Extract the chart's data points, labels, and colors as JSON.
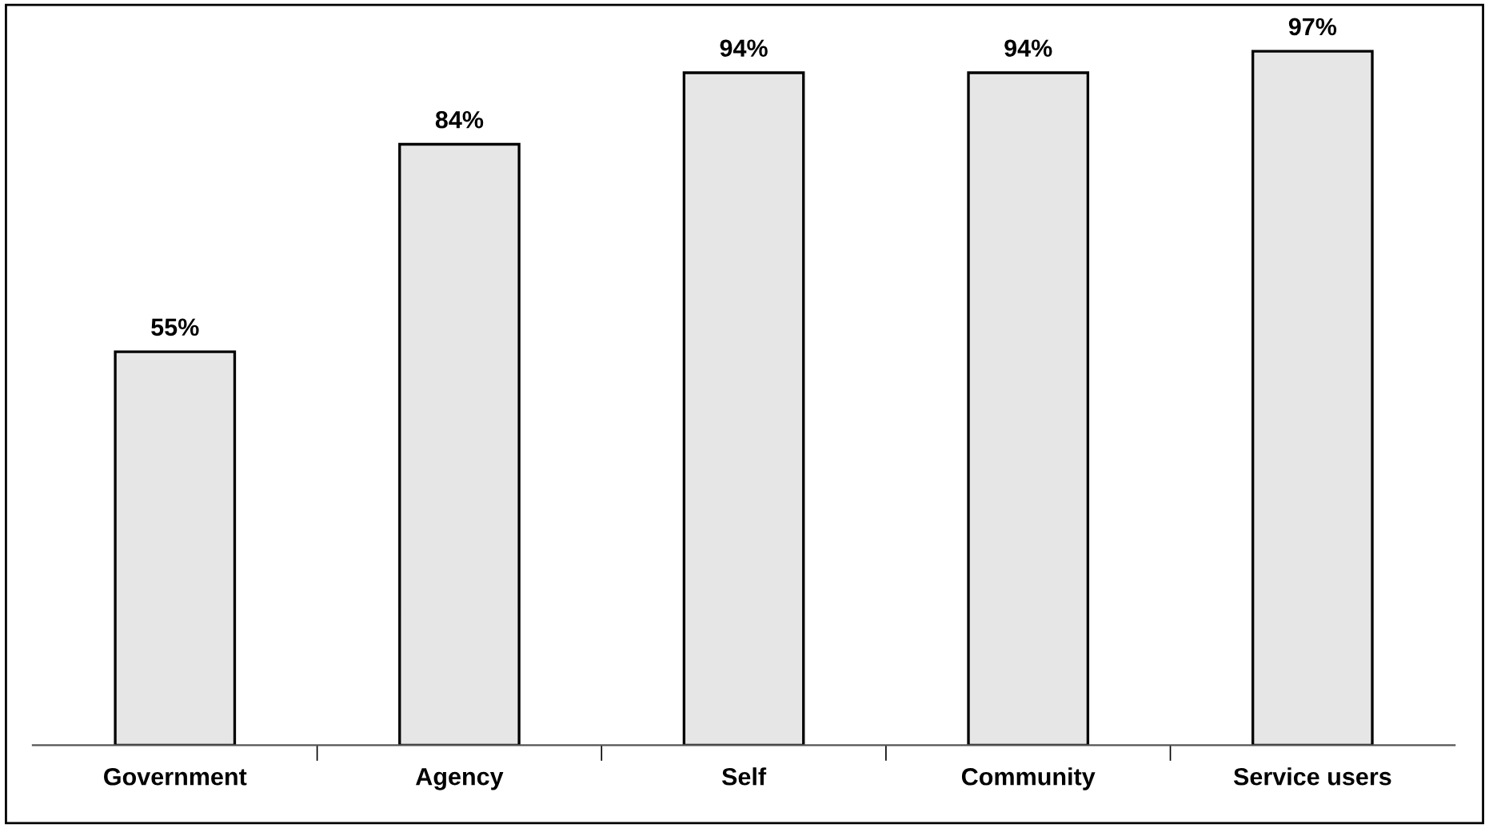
{
  "chart_data": {
    "type": "bar",
    "categories": [
      "Government",
      "Agency",
      "Self",
      "Community",
      "Service users"
    ],
    "values": [
      55,
      84,
      94,
      94,
      97
    ],
    "value_labels": [
      "55%",
      "84%",
      "94%",
      "94%",
      "97%"
    ],
    "color": "#e6e6e6",
    "grid": false
  }
}
